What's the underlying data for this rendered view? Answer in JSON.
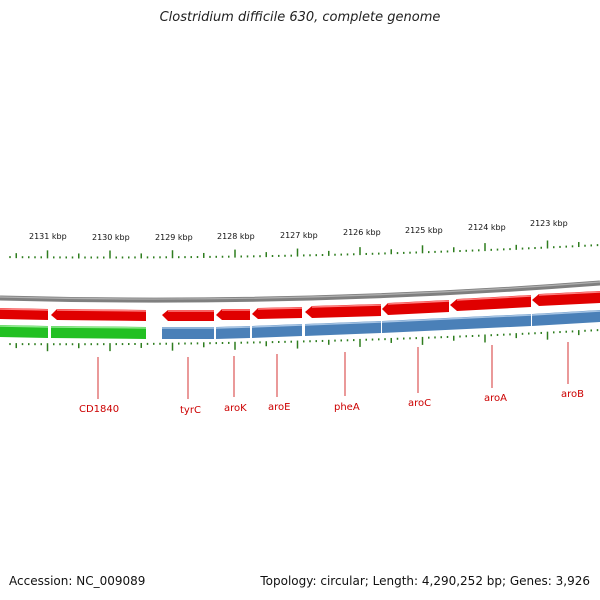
{
  "title": "Clostridium difficile 630, complete genome",
  "footer": {
    "accession": "Accession: NC_009089",
    "info": "Topology: circular; Length: 4,290,252 bp; Genes: 3,926"
  },
  "colors": {
    "forward_gene": "#e00000",
    "reverse_gene_green": "#22c022",
    "reverse_gene_blue": "#4a80b8",
    "backbone": "#888888",
    "tick": "#2e7d1e",
    "gene_label": "#cc0000"
  },
  "scale_labels": [
    "2131 kbp",
    "2130 kbp",
    "2129 kbp",
    "2128 kbp",
    "2127 kbp",
    "2126 kbp",
    "2125 kbp",
    "2124 kbp",
    "2123 kbp"
  ],
  "gene_labels": [
    "CD1840",
    "tyrC",
    "aroK",
    "aroE",
    "pheA",
    "aroC",
    "aroA",
    "aroB"
  ]
}
